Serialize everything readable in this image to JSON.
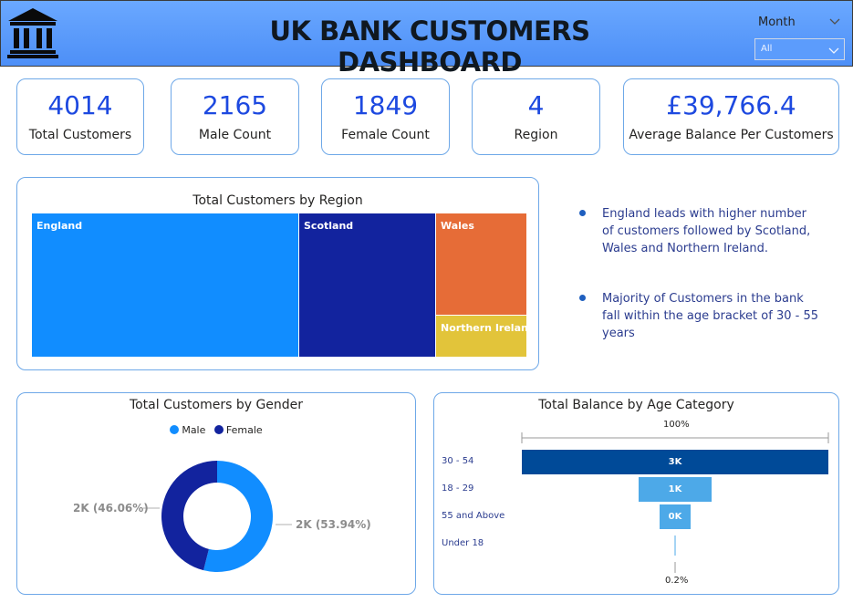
{
  "header": {
    "title": "UK BANK CUSTOMERS DASHBOARD",
    "logo_icon": "bank-building-icon",
    "slicer": {
      "label": "Month",
      "selected": "All"
    }
  },
  "kpis": [
    {
      "value": "4014",
      "label": "Total Customers"
    },
    {
      "value": "2165",
      "label": "Male Count"
    },
    {
      "value": "1849",
      "label": "Female Count"
    },
    {
      "value": "4",
      "label": "Region"
    },
    {
      "value": "£39,766.4",
      "label": "Average Balance Per Customers"
    }
  ],
  "region_chart": {
    "title": "Total Customers by Region",
    "items": [
      {
        "label": "England",
        "color": "#118dff"
      },
      {
        "label": "Scotland",
        "color": "#12239e"
      },
      {
        "label": "Wales",
        "color": "#e66c37"
      },
      {
        "label": "Northern Ireland",
        "color": "#e2c43a"
      }
    ]
  },
  "insights": [
    "England leads with higher number of customers followed by Scotland, Wales and Northern Ireland.",
    "Majority of Customers in the bank fall within the age bracket of 30 - 55 years"
  ],
  "gender_chart": {
    "title": "Total Customers by Gender",
    "legend": [
      {
        "label": "Male",
        "color": "#118dff"
      },
      {
        "label": "Female",
        "color": "#12239e"
      }
    ],
    "female_label": "2K (46.06%)",
    "male_label": "2K (53.94%)"
  },
  "age_chart": {
    "title": "Total Balance by Age Category",
    "top_pct": "100%",
    "bottom_pct": "0.2%",
    "bars": [
      {
        "category": "30 - 54",
        "value_label": "3K",
        "color": "#004a98"
      },
      {
        "category": "18 - 29",
        "value_label": "1K",
        "color": "#4da9e8"
      },
      {
        "category": "55 and Above",
        "value_label": "0K",
        "color": "#4da9e8"
      },
      {
        "category": "Under 18",
        "value_label": "",
        "color": "#4da9e8"
      }
    ]
  },
  "chart_data": [
    {
      "type": "treemap",
      "title": "Total Customers by Region",
      "categories": [
        "England",
        "Scotland",
        "Wales",
        "Northern Ireland"
      ]
    },
    {
      "type": "pie",
      "title": "Total Customers by Gender",
      "categories": [
        "Male",
        "Female"
      ],
      "values": [
        53.94,
        46.06
      ],
      "value_labels": [
        "2K (53.94%)",
        "2K (46.06%)"
      ]
    },
    {
      "type": "bar",
      "title": "Total Balance by Age Category",
      "categories": [
        "30 - 54",
        "18 - 29",
        "55 and Above",
        "Under 18"
      ],
      "value_labels": [
        "3K",
        "1K",
        "0K",
        ""
      ],
      "percent_of_first": [
        100,
        35,
        11,
        0.2
      ]
    }
  ]
}
